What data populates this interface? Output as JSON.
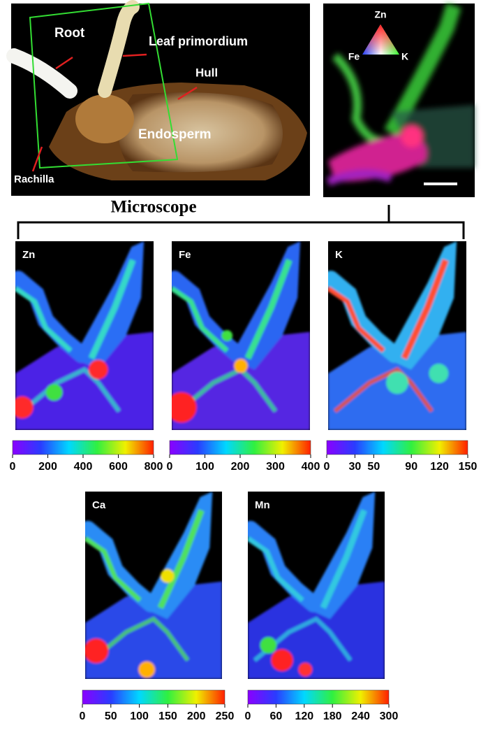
{
  "photo": {
    "labels": [
      "Root",
      "Leaf primordium",
      "Hull",
      "Endosperm",
      "Rachilla"
    ]
  },
  "composite": {
    "labels": [
      "Zn",
      "Fe",
      "K"
    ]
  },
  "title": "Microscope",
  "maps": [
    {
      "element": "Zn",
      "colorbar": {
        "lim": [
          0,
          800
        ],
        "ticks": [
          0,
          200,
          400,
          600,
          800
        ]
      }
    },
    {
      "element": "Fe",
      "colorbar": {
        "lim": [
          0,
          400
        ],
        "ticks": [
          0,
          100,
          200,
          300,
          400
        ]
      }
    },
    {
      "element": "K",
      "colorbar": {
        "lim": [
          0,
          150
        ],
        "ticks": [
          0,
          30,
          50,
          90,
          120,
          150
        ]
      }
    },
    {
      "element": "Ca",
      "colorbar": {
        "lim": [
          0,
          250
        ],
        "ticks": [
          0,
          50,
          100,
          150,
          200,
          250
        ]
      }
    },
    {
      "element": "Mn",
      "colorbar": {
        "lim": [
          0,
          300
        ],
        "ticks": [
          0,
          60,
          120,
          180,
          240,
          300
        ]
      }
    }
  ]
}
